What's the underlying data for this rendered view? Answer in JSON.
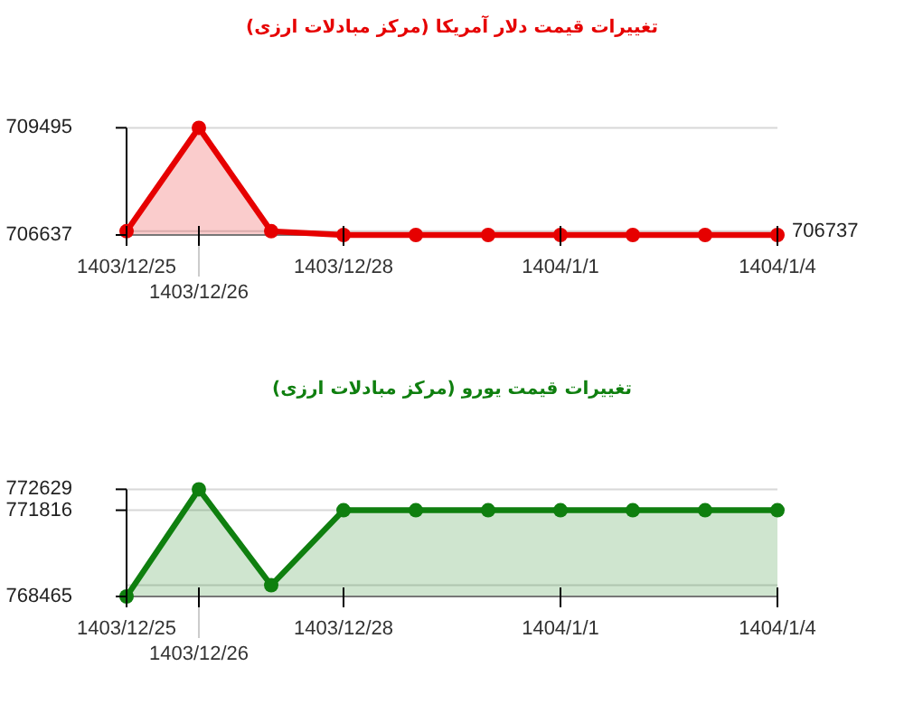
{
  "chart_data": [
    {
      "type": "area",
      "title": "تغییرات قیمت دلار آمریکا (مرکز مبادلات ارزی)",
      "categories": [
        "1403/12/25",
        "1403/12/26",
        null,
        "1403/12/28",
        null,
        null,
        "1404/1/1",
        null,
        null,
        "1404/1/4"
      ],
      "series": [
        {
          "color": "#e60000",
          "values": [
            706737,
            709495,
            706737,
            706637,
            706637,
            706637,
            706637,
            706637,
            706637,
            706637
          ]
        }
      ],
      "ylim": [
        706637,
        709495
      ],
      "yticks": [
        706637,
        709495
      ],
      "grid": "y",
      "marker": "circle",
      "ref_lines": [
        {
          "axis": "y",
          "value": 706737,
          "label": "706737",
          "color": "#d8d8d8"
        }
      ]
    },
    {
      "type": "area",
      "title": "تغییرات قیمت یورو (مرکز مبادلات ارزی)",
      "categories": [
        "1403/12/25",
        "1403/12/26",
        null,
        "1403/12/28",
        null,
        null,
        "1404/1/1",
        null,
        null,
        "1404/1/4"
      ],
      "series": [
        {
          "color": "#0f7f0f",
          "values": [
            768465,
            772629,
            768900,
            771816,
            771816,
            771816,
            771816,
            771816,
            771816,
            771816
          ]
        }
      ],
      "ylim": [
        768465,
        772629
      ],
      "yticks": [
        768465,
        {
          "value": 768900,
          "label": null
        },
        771816,
        772629
      ],
      "grid": "y",
      "marker": "circle"
    }
  ]
}
